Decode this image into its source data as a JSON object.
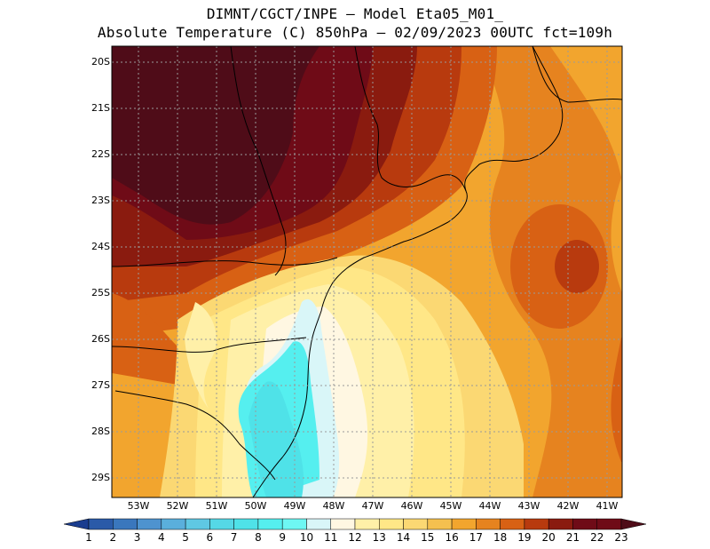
{
  "header": {
    "line1": "DIMNT/CGCT/INPE –  Model Eta05_M01_",
    "line2": "Absolute Temperature (C) 850hPa –  02/09/2023 00UTC fct=109h"
  },
  "map": {
    "lat_labels": [
      "20S",
      "21S",
      "22S",
      "23S",
      "24S",
      "25S",
      "26S",
      "27S",
      "28S",
      "29S"
    ],
    "lon_labels": [
      "53W",
      "52W",
      "51W",
      "50W",
      "49W",
      "48W",
      "47W",
      "46W",
      "45W",
      "44W",
      "43W",
      "42W",
      "41W"
    ]
  },
  "colorbar": {
    "labels": [
      "1",
      "2",
      "3",
      "4",
      "5",
      "6",
      "7",
      "8",
      "9",
      "10",
      "11",
      "12",
      "13",
      "14",
      "15",
      "16",
      "17",
      "18",
      "19",
      "20",
      "21",
      "22",
      "23"
    ],
    "colors": [
      "#1a3d8f",
      "#2a5aa8",
      "#3a77bd",
      "#4e93cf",
      "#5aafdc",
      "#5fc8e3",
      "#55d8e6",
      "#4fe2e8",
      "#55efef",
      "#6ef7f3",
      "#d9f6f8",
      "#fff7e2",
      "#fff0a8",
      "#ffe787",
      "#fbd873",
      "#f5c04f",
      "#f2a52e",
      "#e6831f",
      "#d86114",
      "#b83a0e",
      "#8a1b0f",
      "#6f0b17",
      "#4f0c18"
    ]
  }
}
